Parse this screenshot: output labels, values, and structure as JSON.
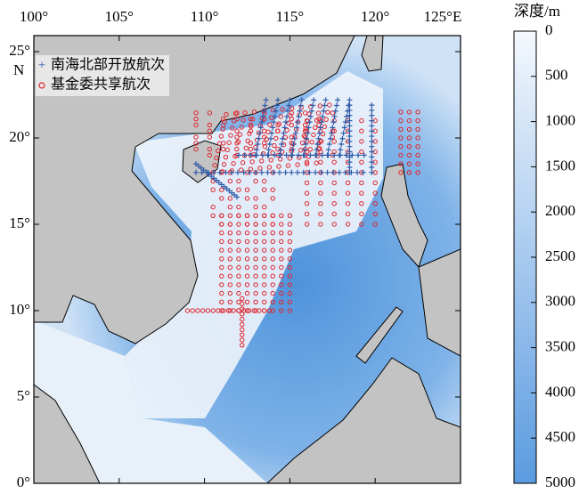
{
  "map": {
    "lon_ticks": [
      {
        "value": 100,
        "label": "100°"
      },
      {
        "value": 105,
        "label": "105°"
      },
      {
        "value": 110,
        "label": "110°"
      },
      {
        "value": 115,
        "label": "115°"
      },
      {
        "value": 120,
        "label": "120°"
      },
      {
        "value": 125,
        "label": "125°E"
      }
    ],
    "lat_ticks": [
      {
        "value": 25,
        "label": "25°"
      },
      {
        "value": 20,
        "label": "20°"
      },
      {
        "value": 15,
        "label": "15°"
      },
      {
        "value": 10,
        "label": "10°"
      },
      {
        "value": 5,
        "label": "5°"
      },
      {
        "value": 0,
        "label": "0°"
      }
    ],
    "lat_hemisphere": "N",
    "legend": [
      {
        "name": "南海北部开放航次",
        "color": "#2f5aa8"
      },
      {
        "name": "基金委共享航次",
        "color": "#e0242a"
      }
    ],
    "colorbar": {
      "title": "深度/m",
      "lim": [
        0,
        5000
      ],
      "ticks": [
        0,
        500,
        1000,
        1500,
        2000,
        2500,
        3000,
        3500,
        4000,
        4500,
        5000
      ]
    }
  }
}
